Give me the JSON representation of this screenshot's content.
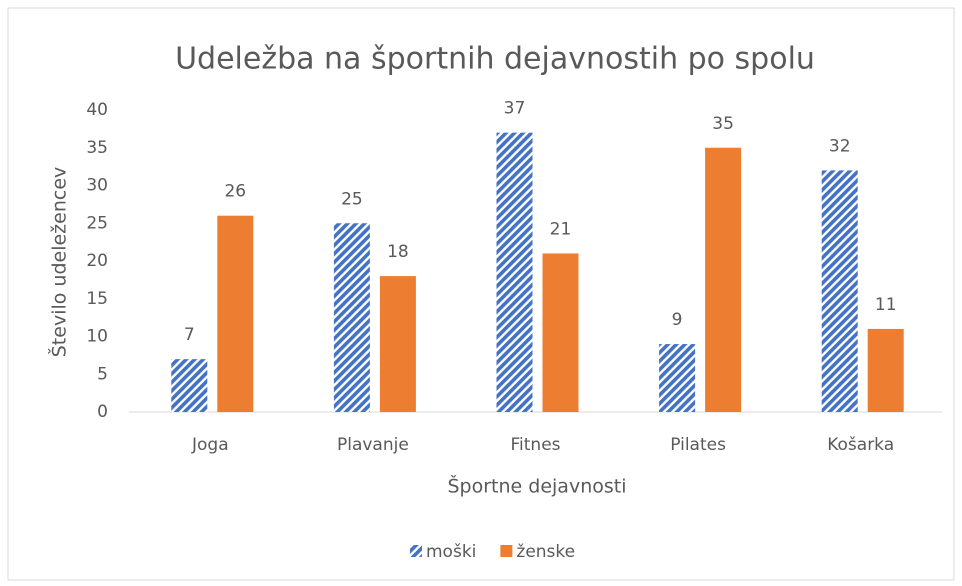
{
  "chart_data": {
    "type": "bar",
    "title": "Udeležba na športnih dejavnostih po spolu",
    "x_label": "Športne dejavnosti",
    "y_label": "Število udeležencev",
    "categories": [
      "Joga",
      "Plavanje",
      "Fitnes",
      "Pilates",
      "Košarka"
    ],
    "series": [
      {
        "name": "moški",
        "color": "#4472c4",
        "values": [
          7,
          25,
          37,
          9,
          32
        ]
      },
      {
        "name": "ženske",
        "color": "#ed7d31",
        "values": [
          26,
          18,
          21,
          35,
          11
        ]
      }
    ],
    "ylim": [
      0,
      40
    ],
    "yticks": [
      0,
      5,
      10,
      15,
      20,
      25,
      30,
      35,
      40
    ],
    "grid": false,
    "legend": "bottom"
  }
}
